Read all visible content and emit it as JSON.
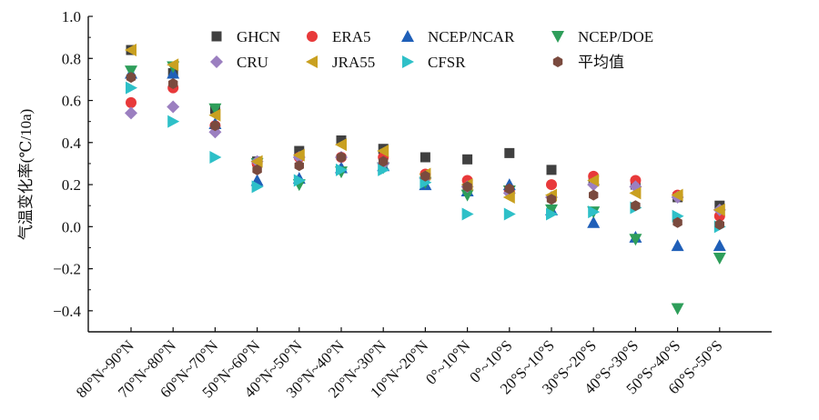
{
  "chart_data": {
    "type": "scatter",
    "title": "",
    "xlabel": "",
    "ylabel": "气温变化率(℃/10a)",
    "ylim": [
      -0.5,
      1.0
    ],
    "yticks": [
      1.0,
      0.8,
      0.6,
      0.4,
      0.2,
      0.0,
      -0.2,
      -0.4
    ],
    "ytick_labels": [
      "1.0",
      "0.8",
      "0.6",
      "0.4",
      "0.2",
      "0.0",
      "−0.2",
      "−0.4"
    ],
    "categories": [
      "80°N~90°N",
      "70°N~80°N",
      "60°N~70°N",
      "50°N~60°N",
      "40°N~50°N",
      "30°N~40°N",
      "20°N~30°N",
      "10°N~20°N",
      "0°~10°N",
      "0°~10°S",
      "20°S~10°S",
      "30°S~20°S",
      "40°S~30°S",
      "50°S~40°S",
      "60°S~50°S"
    ],
    "grid": false,
    "legend_position": "top-right",
    "series": [
      {
        "name": "GHCN",
        "marker": "square",
        "color": "#404040",
        "values": [
          0.84,
          0.73,
          0.56,
          0.31,
          0.36,
          0.41,
          0.37,
          0.33,
          0.32,
          0.35,
          0.27,
          0.22,
          0.2,
          0.14,
          0.1
        ]
      },
      {
        "name": "ERA5",
        "marker": "circle",
        "color": "#e8393a",
        "values": [
          0.59,
          0.66,
          0.48,
          0.3,
          0.33,
          0.33,
          0.33,
          0.25,
          0.22,
          0.17,
          0.2,
          0.24,
          0.22,
          0.15,
          0.05
        ]
      },
      {
        "name": "NCEP/NCAR",
        "marker": "triangle-up",
        "color": "#1f5fb8",
        "values": [
          0.73,
          0.73,
          0.49,
          0.22,
          0.23,
          0.28,
          0.29,
          0.2,
          0.17,
          0.2,
          0.08,
          0.02,
          -0.05,
          -0.09,
          -0.09
        ]
      },
      {
        "name": "NCEP/DOE",
        "marker": "triangle-down",
        "color": "#2e9e5a",
        "values": [
          0.74,
          0.76,
          0.56,
          0.3,
          0.2,
          0.26,
          0.28,
          0.21,
          0.15,
          0.17,
          0.08,
          0.07,
          -0.06,
          -0.39,
          -0.15
        ]
      },
      {
        "name": "CRU",
        "marker": "diamond",
        "color": "#9b7fc0",
        "values": [
          0.54,
          0.57,
          0.45,
          0.31,
          0.33,
          0.33,
          0.3,
          0.23,
          0.19,
          0.16,
          0.14,
          0.2,
          0.19,
          0.14,
          0.08
        ]
      },
      {
        "name": "JRA55",
        "marker": "triangle-left",
        "color": "#c9a020",
        "values": [
          0.84,
          0.77,
          0.53,
          0.31,
          0.34,
          0.39,
          0.36,
          0.25,
          0.2,
          0.14,
          0.15,
          0.22,
          0.16,
          0.15,
          0.08
        ]
      },
      {
        "name": "CFSR",
        "marker": "triangle-right",
        "color": "#2ec0c8",
        "values": [
          0.66,
          0.5,
          0.33,
          0.19,
          0.22,
          0.27,
          0.27,
          0.21,
          0.06,
          0.06,
          0.06,
          0.07,
          0.09,
          0.05,
          0.0
        ]
      },
      {
        "name": "平均值",
        "marker": "hexagon",
        "color": "#7a4a3e",
        "values": [
          0.71,
          0.68,
          0.48,
          0.27,
          0.29,
          0.33,
          0.31,
          0.24,
          0.19,
          0.18,
          0.13,
          0.15,
          0.1,
          0.02,
          0.01
        ]
      }
    ]
  }
}
